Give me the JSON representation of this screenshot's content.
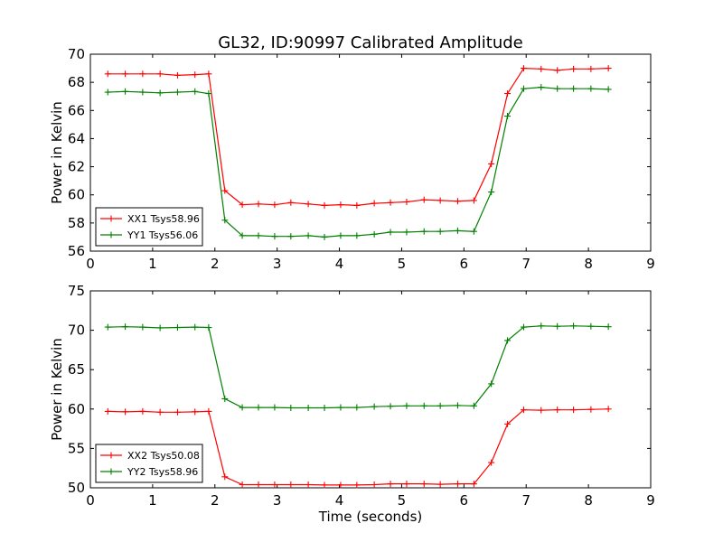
{
  "figure": {
    "title": "GL32, ID:90997 Calibrated Amplitude"
  },
  "chart_data": [
    {
      "type": "line",
      "title": "GL32, ID:90997 Calibrated Amplitude",
      "xlabel": "",
      "ylabel": "Power in Kelvin",
      "xlim": [
        0,
        9
      ],
      "ylim": [
        56,
        70
      ],
      "xticks": [
        0,
        1,
        2,
        3,
        4,
        5,
        6,
        7,
        8,
        9
      ],
      "yticks": [
        56,
        58,
        60,
        62,
        64,
        66,
        68,
        70
      ],
      "grid": false,
      "legend_position": "lower-left",
      "x": [
        0.28,
        0.56,
        0.84,
        1.12,
        1.4,
        1.68,
        1.9,
        2.16,
        2.44,
        2.7,
        2.96,
        3.22,
        3.5,
        3.76,
        4.02,
        4.28,
        4.56,
        4.82,
        5.08,
        5.36,
        5.62,
        5.9,
        6.16,
        6.44,
        6.7,
        6.96,
        7.24,
        7.5,
        7.76,
        8.04,
        8.32
      ],
      "series": [
        {
          "name": "XX1 Tsys58.96",
          "color": "#ff0000",
          "values": [
            68.6,
            68.6,
            68.6,
            68.6,
            68.5,
            68.55,
            68.6,
            60.3,
            59.3,
            59.35,
            59.3,
            59.45,
            59.35,
            59.25,
            59.3,
            59.25,
            59.4,
            59.45,
            59.5,
            59.65,
            59.6,
            59.55,
            59.6,
            62.2,
            67.2,
            69.0,
            68.95,
            68.85,
            68.95,
            68.95,
            69.0
          ]
        },
        {
          "name": "YY1 Tsys56.06",
          "color": "#008000",
          "values": [
            67.3,
            67.35,
            67.3,
            67.25,
            67.3,
            67.35,
            67.2,
            58.2,
            57.1,
            57.1,
            57.05,
            57.05,
            57.1,
            57.0,
            57.1,
            57.1,
            57.2,
            57.35,
            57.35,
            57.4,
            57.4,
            57.45,
            57.4,
            60.2,
            65.6,
            67.55,
            67.65,
            67.55,
            67.55,
            67.55,
            67.5
          ]
        }
      ]
    },
    {
      "type": "line",
      "title": "",
      "xlabel": "Time (seconds)",
      "ylabel": "Power in Kelvin",
      "xlim": [
        0,
        9
      ],
      "ylim": [
        50,
        75
      ],
      "xticks": [
        0,
        1,
        2,
        3,
        4,
        5,
        6,
        7,
        8,
        9
      ],
      "yticks": [
        50,
        55,
        60,
        65,
        70,
        75
      ],
      "grid": false,
      "legend_position": "lower-left",
      "x": [
        0.28,
        0.56,
        0.84,
        1.12,
        1.4,
        1.68,
        1.9,
        2.16,
        2.44,
        2.7,
        2.96,
        3.22,
        3.5,
        3.76,
        4.02,
        4.28,
        4.56,
        4.82,
        5.08,
        5.36,
        5.62,
        5.9,
        6.16,
        6.44,
        6.7,
        6.96,
        7.24,
        7.5,
        7.76,
        8.04,
        8.32
      ],
      "series": [
        {
          "name": "XX2 Tsys50.08",
          "color": "#ff0000",
          "values": [
            59.7,
            59.65,
            59.7,
            59.6,
            59.6,
            59.65,
            59.7,
            51.4,
            50.4,
            50.4,
            50.4,
            50.4,
            50.4,
            50.35,
            50.35,
            50.35,
            50.4,
            50.5,
            50.5,
            50.5,
            50.45,
            50.5,
            50.5,
            53.2,
            58.1,
            59.9,
            59.85,
            59.9,
            59.9,
            59.95,
            60.0
          ]
        },
        {
          "name": "YY2 Tsys58.96",
          "color": "#008000",
          "values": [
            70.4,
            70.45,
            70.4,
            70.3,
            70.35,
            70.4,
            70.35,
            61.3,
            60.2,
            60.2,
            60.2,
            60.15,
            60.15,
            60.15,
            60.2,
            60.2,
            60.3,
            60.35,
            60.4,
            60.4,
            60.4,
            60.45,
            60.4,
            63.2,
            68.7,
            70.4,
            70.55,
            70.5,
            70.55,
            70.5,
            70.45
          ]
        }
      ]
    }
  ]
}
